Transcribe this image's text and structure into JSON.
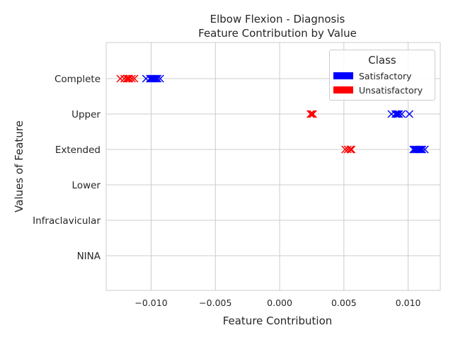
{
  "chart_data": {
    "type": "scatter",
    "title": "Elbow Flexion - Diagnosis",
    "subtitle": "Feature Contribution by Value",
    "xlabel": "Feature Contribution",
    "ylabel": "Values of Feature",
    "xlim": [
      -0.0135,
      0.0125
    ],
    "x_ticks": [
      -0.01,
      -0.005,
      0.0,
      0.005,
      0.01
    ],
    "x_tick_labels": [
      "−0.010",
      "−0.005",
      "0.000",
      "0.005",
      "0.010"
    ],
    "categories": [
      "Complete",
      "Upper",
      "Extended",
      "Lower",
      "Infraclavicular",
      "NINA"
    ],
    "grid": true,
    "marker": "x",
    "legend": {
      "title": "Class",
      "placement": "top-right",
      "entries": [
        {
          "label": "Satisfactory",
          "color": "#0000ff"
        },
        {
          "label": "Unsatisfactory",
          "color": "#ff0000"
        }
      ]
    },
    "series": [
      {
        "name": "Satisfactory",
        "color": "#0000ff",
        "points": [
          {
            "category": "Complete",
            "x": -0.0104
          },
          {
            "category": "Complete",
            "x": -0.0101
          },
          {
            "category": "Complete",
            "x": -0.01
          },
          {
            "category": "Complete",
            "x": -0.0099
          },
          {
            "category": "Complete",
            "x": -0.0098
          },
          {
            "category": "Complete",
            "x": -0.0097
          },
          {
            "category": "Complete",
            "x": -0.0096
          },
          {
            "category": "Complete",
            "x": -0.0095
          },
          {
            "category": "Complete",
            "x": -0.0093
          },
          {
            "category": "Upper",
            "x": 0.0087
          },
          {
            "category": "Upper",
            "x": 0.009
          },
          {
            "category": "Upper",
            "x": 0.0091
          },
          {
            "category": "Upper",
            "x": 0.0092
          },
          {
            "category": "Upper",
            "x": 0.0093
          },
          {
            "category": "Upper",
            "x": 0.0095
          },
          {
            "category": "Upper",
            "x": 0.0101
          },
          {
            "category": "Extended",
            "x": 0.0104
          },
          {
            "category": "Extended",
            "x": 0.0105
          },
          {
            "category": "Extended",
            "x": 0.0106
          },
          {
            "category": "Extended",
            "x": 0.0107
          },
          {
            "category": "Extended",
            "x": 0.0108
          },
          {
            "category": "Extended",
            "x": 0.0109
          },
          {
            "category": "Extended",
            "x": 0.011
          },
          {
            "category": "Extended",
            "x": 0.0111
          },
          {
            "category": "Extended",
            "x": 0.0113
          }
        ]
      },
      {
        "name": "Unsatisfactory",
        "color": "#ff0000",
        "points": [
          {
            "category": "Complete",
            "x": -0.0124
          },
          {
            "category": "Complete",
            "x": -0.0121
          },
          {
            "category": "Complete",
            "x": -0.0119
          },
          {
            "category": "Complete",
            "x": -0.0118
          },
          {
            "category": "Complete",
            "x": -0.0117
          },
          {
            "category": "Complete",
            "x": -0.0115
          },
          {
            "category": "Complete",
            "x": -0.0113
          },
          {
            "category": "Upper",
            "x": 0.0024
          },
          {
            "category": "Upper",
            "x": 0.0025
          },
          {
            "category": "Upper",
            "x": 0.0026
          },
          {
            "category": "Extended",
            "x": 0.0051
          },
          {
            "category": "Extended",
            "x": 0.0053
          },
          {
            "category": "Extended",
            "x": 0.0055
          },
          {
            "category": "Extended",
            "x": 0.0056
          }
        ]
      }
    ]
  }
}
